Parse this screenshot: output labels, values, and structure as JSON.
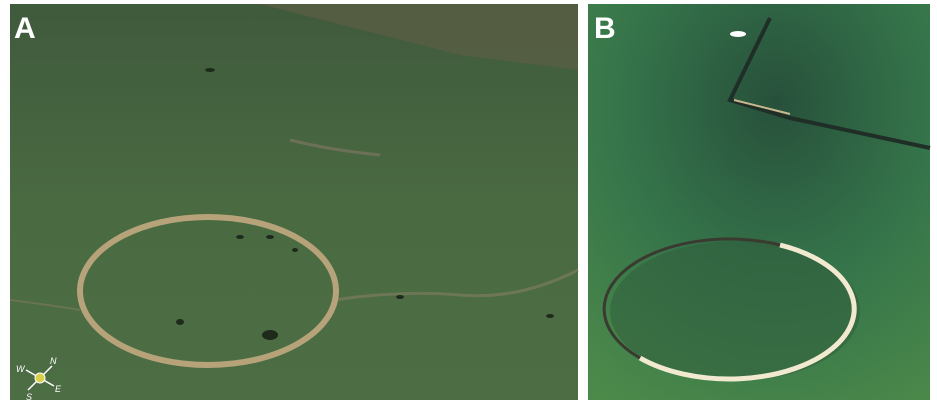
{
  "panels": [
    {
      "label": "A",
      "compass": {
        "n": "N",
        "e": "E",
        "s": "S",
        "w": "W"
      }
    },
    {
      "label": "B"
    }
  ]
}
